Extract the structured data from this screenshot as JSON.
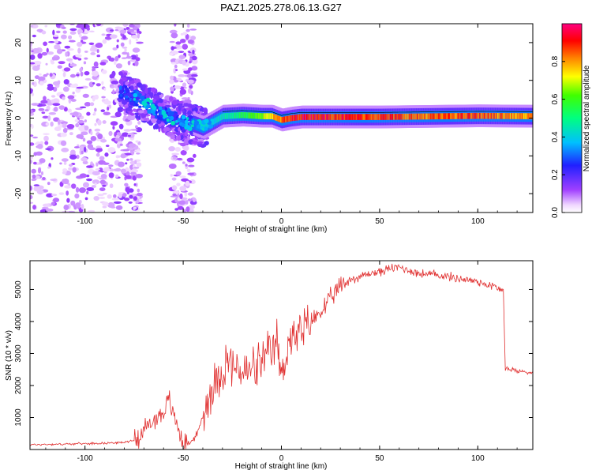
{
  "figure": {
    "title": "PAZ1.2025.278.06.13.G27"
  },
  "chart_data": [
    {
      "type": "heatmap",
      "title": "PAZ1.2025.278.06.13.G27",
      "xlabel": "Height of straight line (km)",
      "ylabel": "Frequency (Hz)",
      "xlim": [
        -128,
        128
      ],
      "ylim": [
        -25,
        25
      ],
      "xticks": [
        -100,
        -50,
        0,
        50,
        100
      ],
      "yticks": [
        -20,
        -10,
        0,
        10,
        20
      ],
      "xtick_labels": [
        "-100",
        "-50",
        "0",
        "50",
        "100"
      ],
      "ytick_labels": [
        "-20",
        "-10",
        "0",
        "10",
        "20"
      ],
      "colorbar": {
        "label": "Normalized spectral amplitude",
        "range": [
          0.0,
          1.0
        ],
        "ticks": [
          0.0,
          0.2,
          0.4,
          0.6,
          0.8
        ],
        "tick_labels": [
          "0.0",
          "0.2",
          "0.4",
          "0.6",
          "0.8"
        ],
        "colormap": "rainbow"
      },
      "ridge_line": {
        "description": "dominant frequency ridge",
        "points": [
          [
            -80,
            7
          ],
          [
            -70,
            4
          ],
          [
            -60,
            1
          ],
          [
            -50,
            -1
          ],
          [
            -45,
            -1.5
          ],
          [
            -40,
            -2.5
          ],
          [
            -35,
            -1
          ],
          [
            -30,
            0.5
          ],
          [
            -20,
            0.8
          ],
          [
            -10,
            0.5
          ],
          [
            -5,
            0.5
          ],
          [
            0,
            -0.5
          ],
          [
            5,
            0
          ],
          [
            10,
            0.3
          ],
          [
            50,
            0.3
          ],
          [
            100,
            0.6
          ],
          [
            128,
            0.5
          ]
        ]
      },
      "ridge_amplitude": [
        [
          -80,
          0.15
        ],
        [
          -70,
          0.25
        ],
        [
          -60,
          0.35
        ],
        [
          -50,
          0.25
        ],
        [
          -40,
          0.4
        ],
        [
          -30,
          0.45
        ],
        [
          -20,
          0.55
        ],
        [
          -10,
          0.7
        ],
        [
          0,
          0.85
        ],
        [
          10,
          0.95
        ],
        [
          30,
          0.92
        ],
        [
          50,
          0.9
        ],
        [
          70,
          0.85
        ],
        [
          100,
          0.88
        ],
        [
          128,
          0.8
        ]
      ]
    },
    {
      "type": "line",
      "xlabel": "Height of straight line (km)",
      "ylabel": "SNR (10 * v/v)",
      "xlim": [
        -128,
        128
      ],
      "ylim": [
        0,
        5900
      ],
      "xticks": [
        -100,
        -50,
        0,
        50,
        100
      ],
      "yticks": [
        1000,
        2000,
        3000,
        4000,
        5000
      ],
      "xtick_labels": [
        "-100",
        "-50",
        "0",
        "50",
        "100"
      ],
      "ytick_labels": [
        "1000",
        "2000",
        "3000",
        "4000",
        "5000"
      ],
      "series": [
        {
          "name": "SNR",
          "color": "#e03030",
          "x": [
            -128,
            -110,
            -90,
            -80,
            -75,
            -70,
            -65,
            -60,
            -57,
            -55,
            -52,
            -50,
            -47,
            -45,
            -42,
            -40,
            -37,
            -35,
            -32,
            -30,
            -27,
            -25,
            -22,
            -20,
            -17,
            -15,
            -12,
            -10,
            -7,
            -5,
            -2,
            0,
            3,
            5,
            8,
            10,
            13,
            15,
            20,
            25,
            30,
            35,
            40,
            45,
            50,
            55,
            60,
            65,
            70,
            80,
            90,
            100,
            105,
            110,
            113,
            114,
            115,
            120,
            128
          ],
          "y": [
            150,
            170,
            200,
            220,
            300,
            600,
            900,
            1200,
            1500,
            1100,
            600,
            250,
            180,
            300,
            600,
            1100,
            1600,
            2000,
            2300,
            2500,
            2800,
            2600,
            2500,
            2400,
            2400,
            2500,
            2600,
            2700,
            2900,
            3000,
            3400,
            2200,
            3200,
            3600,
            3400,
            3700,
            3800,
            4000,
            4300,
            4700,
            5100,
            5300,
            5400,
            5500,
            5550,
            5650,
            5700,
            5600,
            5500,
            5450,
            5350,
            5250,
            5150,
            5050,
            4950,
            2500,
            2550,
            2450,
            2400
          ]
        }
      ]
    }
  ]
}
